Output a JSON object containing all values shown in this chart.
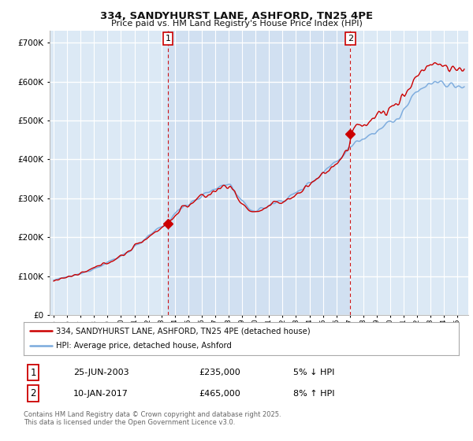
{
  "title_line1": "334, SANDYHURST LANE, ASHFORD, TN25 4PE",
  "title_line2": "Price paid vs. HM Land Registry's House Price Index (HPI)",
  "ytick_values": [
    0,
    100000,
    200000,
    300000,
    400000,
    500000,
    600000,
    700000
  ],
  "ylim": [
    0,
    730000
  ],
  "xlim_start": 1994.7,
  "xlim_end": 2025.8,
  "fig_bg_color": "#ffffff",
  "plot_bg_color": "#dce9f5",
  "plot_bg_color2": "#c8d8ee",
  "grid_color": "#ffffff",
  "red_line_color": "#cc0000",
  "blue_line_color": "#7aaadd",
  "marker1_x": 2003.48,
  "marker1_y": 235000,
  "marker2_x": 2017.03,
  "marker2_y": 465000,
  "legend_label1": "334, SANDYHURST LANE, ASHFORD, TN25 4PE (detached house)",
  "legend_label2": "HPI: Average price, detached house, Ashford",
  "footnote": "Contains HM Land Registry data © Crown copyright and database right 2025.\nThis data is licensed under the Open Government Licence v3.0.",
  "table_row1_num": "1",
  "table_row1_date": "25-JUN-2003",
  "table_row1_price": "£235,000",
  "table_row1_hpi": "5% ↓ HPI",
  "table_row2_num": "2",
  "table_row2_date": "10-JAN-2017",
  "table_row2_price": "£465,000",
  "table_row2_hpi": "8% ↑ HPI"
}
